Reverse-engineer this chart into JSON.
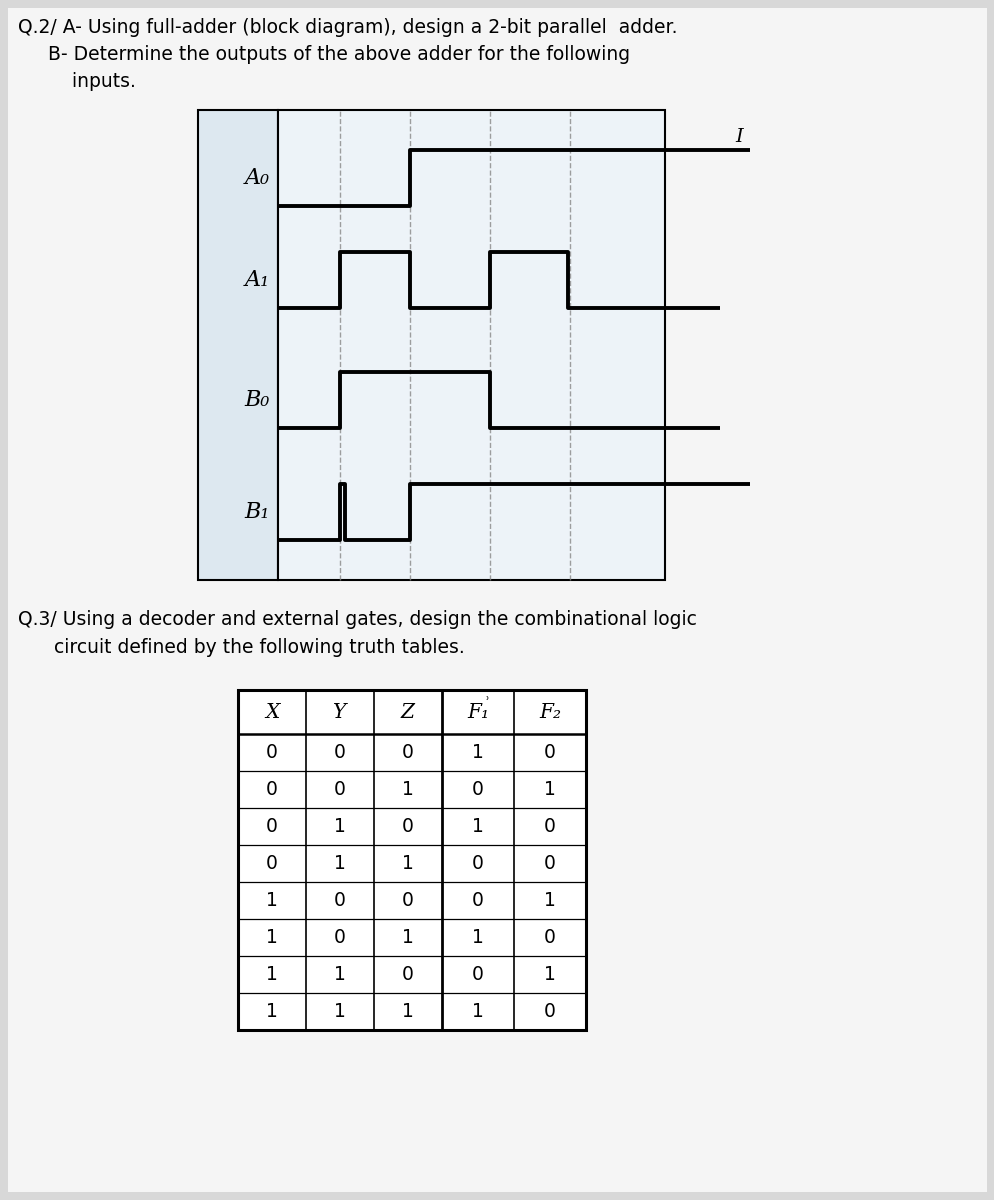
{
  "bg_color": "#d8d8d8",
  "page_color": "#f5f5f5",
  "q2_line1": "Q.2/ A- Using full-adder (block diagram), design a 2-bit parallel  adder.",
  "q2_line2": "     B- Determine the outputs of the above adder for the following",
  "q2_line3": "         inputs.",
  "q3_line1": "Q.3/ Using a decoder and external gates, design the combinational logic",
  "q3_line2": "      circuit defined by the following truth tables.",
  "signal_labels": [
    "A₀",
    "A₁",
    "B₀",
    "B₁"
  ],
  "wf_label_bg": "#dde8f0",
  "wf_inner_bg": "#edf3f8",
  "table_data": [
    [
      0,
      0,
      0,
      1,
      0
    ],
    [
      0,
      0,
      1,
      0,
      1
    ],
    [
      0,
      1,
      0,
      1,
      0
    ],
    [
      0,
      1,
      1,
      0,
      0
    ],
    [
      1,
      0,
      0,
      0,
      1
    ],
    [
      1,
      0,
      1,
      1,
      0
    ],
    [
      1,
      1,
      0,
      0,
      1
    ],
    [
      1,
      1,
      1,
      1,
      0
    ]
  ],
  "font_main": 13.5,
  "font_label": 16,
  "font_table": 13.5
}
